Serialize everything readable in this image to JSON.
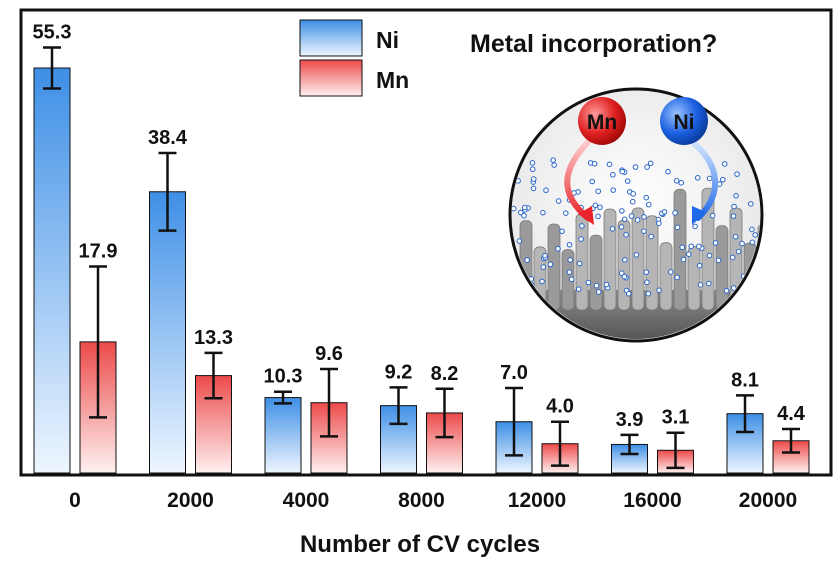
{
  "chart_data": {
    "type": "bar",
    "title": "",
    "xlabel": "Number of CV cycles",
    "ylabel": "",
    "ylim": [
      0,
      58
    ],
    "categories": [
      "0",
      "2000",
      "4000",
      "8000",
      "12000",
      "16000",
      "20000"
    ],
    "series": [
      {
        "name": "Ni",
        "values": [
          55.3,
          38.4,
          10.3,
          9.2,
          7.0,
          3.9,
          8.1
        ],
        "labels": [
          "55.3",
          "38.4",
          "10.3",
          "9.2",
          "7.0",
          "3.9",
          "8.1"
        ],
        "error": [
          2.8,
          5.3,
          0.8,
          2.5,
          4.6,
          1.3,
          2.5
        ],
        "color_top": "#3e8fe6",
        "color_bottom": "#eef6ff"
      },
      {
        "name": "Mn",
        "values": [
          17.9,
          13.3,
          9.6,
          8.2,
          4.0,
          3.1,
          4.4
        ],
        "labels": [
          "17.9",
          "13.3",
          "9.6",
          "8.2",
          "4.0",
          "3.1",
          "4.4"
        ],
        "error": [
          10.3,
          3.1,
          4.6,
          3.3,
          3.0,
          2.4,
          1.6
        ],
        "color_top": "#ec4a4a",
        "color_bottom": "#fff0f0"
      }
    ],
    "legend_position": "top-center",
    "grid": false,
    "y_ticks_shown": false
  },
  "inset": {
    "title": "Metal incorporation?",
    "ball_left_label": "Mn",
    "ball_right_label": "Ni",
    "ball_left_color": "#e02020",
    "ball_right_color": "#1a5fe0"
  }
}
